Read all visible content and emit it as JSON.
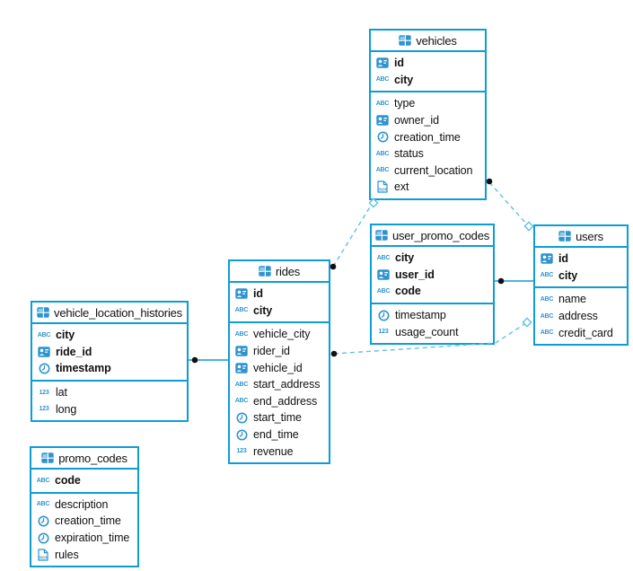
{
  "diagram": {
    "colors": {
      "table_border": "#0d9dd6",
      "icon_blue": "#2e94d0",
      "icon_light": "#8ecdee",
      "dashed_line": "#5fc0e8",
      "endpoint_dot": "#111111",
      "text": "#111111",
      "background": "#ffffff"
    },
    "tables": [
      {
        "name": "vehicles",
        "key_fields": [
          {
            "name": "id",
            "type": "uuid"
          },
          {
            "name": "city",
            "type": "string"
          }
        ],
        "fields": [
          {
            "name": "type",
            "type": "string"
          },
          {
            "name": "owner_id",
            "type": "uuid"
          },
          {
            "name": "creation_time",
            "type": "timestamp"
          },
          {
            "name": "status",
            "type": "string"
          },
          {
            "name": "current_location",
            "type": "string"
          },
          {
            "name": "ext",
            "type": "json"
          }
        ]
      },
      {
        "name": "user_promo_codes",
        "key_fields": [
          {
            "name": "city",
            "type": "string"
          },
          {
            "name": "user_id",
            "type": "uuid"
          },
          {
            "name": "code",
            "type": "string"
          }
        ],
        "fields": [
          {
            "name": "timestamp",
            "type": "timestamp"
          },
          {
            "name": "usage_count",
            "type": "number"
          }
        ]
      },
      {
        "name": "users",
        "key_fields": [
          {
            "name": "id",
            "type": "uuid"
          },
          {
            "name": "city",
            "type": "string"
          }
        ],
        "fields": [
          {
            "name": "name",
            "type": "string"
          },
          {
            "name": "address",
            "type": "string"
          },
          {
            "name": "credit_card",
            "type": "string"
          }
        ]
      },
      {
        "name": "rides",
        "key_fields": [
          {
            "name": "id",
            "type": "uuid"
          },
          {
            "name": "city",
            "type": "string"
          }
        ],
        "fields": [
          {
            "name": "vehicle_city",
            "type": "string"
          },
          {
            "name": "rider_id",
            "type": "uuid"
          },
          {
            "name": "vehicle_id",
            "type": "uuid"
          },
          {
            "name": "start_address",
            "type": "string"
          },
          {
            "name": "end_address",
            "type": "string"
          },
          {
            "name": "start_time",
            "type": "timestamp"
          },
          {
            "name": "end_time",
            "type": "timestamp"
          },
          {
            "name": "revenue",
            "type": "number"
          }
        ]
      },
      {
        "name": "vehicle_location_histories",
        "key_fields": [
          {
            "name": "city",
            "type": "string"
          },
          {
            "name": "ride_id",
            "type": "uuid"
          },
          {
            "name": "timestamp",
            "type": "timestamp"
          }
        ],
        "fields": [
          {
            "name": "lat",
            "type": "number"
          },
          {
            "name": "long",
            "type": "number"
          }
        ]
      },
      {
        "name": "promo_codes",
        "key_fields": [
          {
            "name": "code",
            "type": "string"
          }
        ],
        "fields": [
          {
            "name": "description",
            "type": "string"
          },
          {
            "name": "creation_time",
            "type": "timestamp"
          },
          {
            "name": "expiration_time",
            "type": "timestamp"
          },
          {
            "name": "rules",
            "type": "json"
          }
        ]
      }
    ],
    "relations": [
      {
        "from": "vehicle_location_histories",
        "to": "rides",
        "line": "solid",
        "from_marker": "dot",
        "to_marker": "none"
      },
      {
        "from": "user_promo_codes",
        "to": "users",
        "line": "solid",
        "from_marker": "dot",
        "to_marker": "none"
      },
      {
        "from": "rides",
        "to": "vehicles",
        "line": "dashed",
        "from_marker": "dot",
        "to_marker": "diamond"
      },
      {
        "from": "rides",
        "to": "users",
        "line": "dashed",
        "from_marker": "dot",
        "to_marker": "diamond"
      },
      {
        "from": "vehicles",
        "to": "users",
        "line": "dashed",
        "from_marker": "dot",
        "to_marker": "diamond"
      }
    ]
  }
}
